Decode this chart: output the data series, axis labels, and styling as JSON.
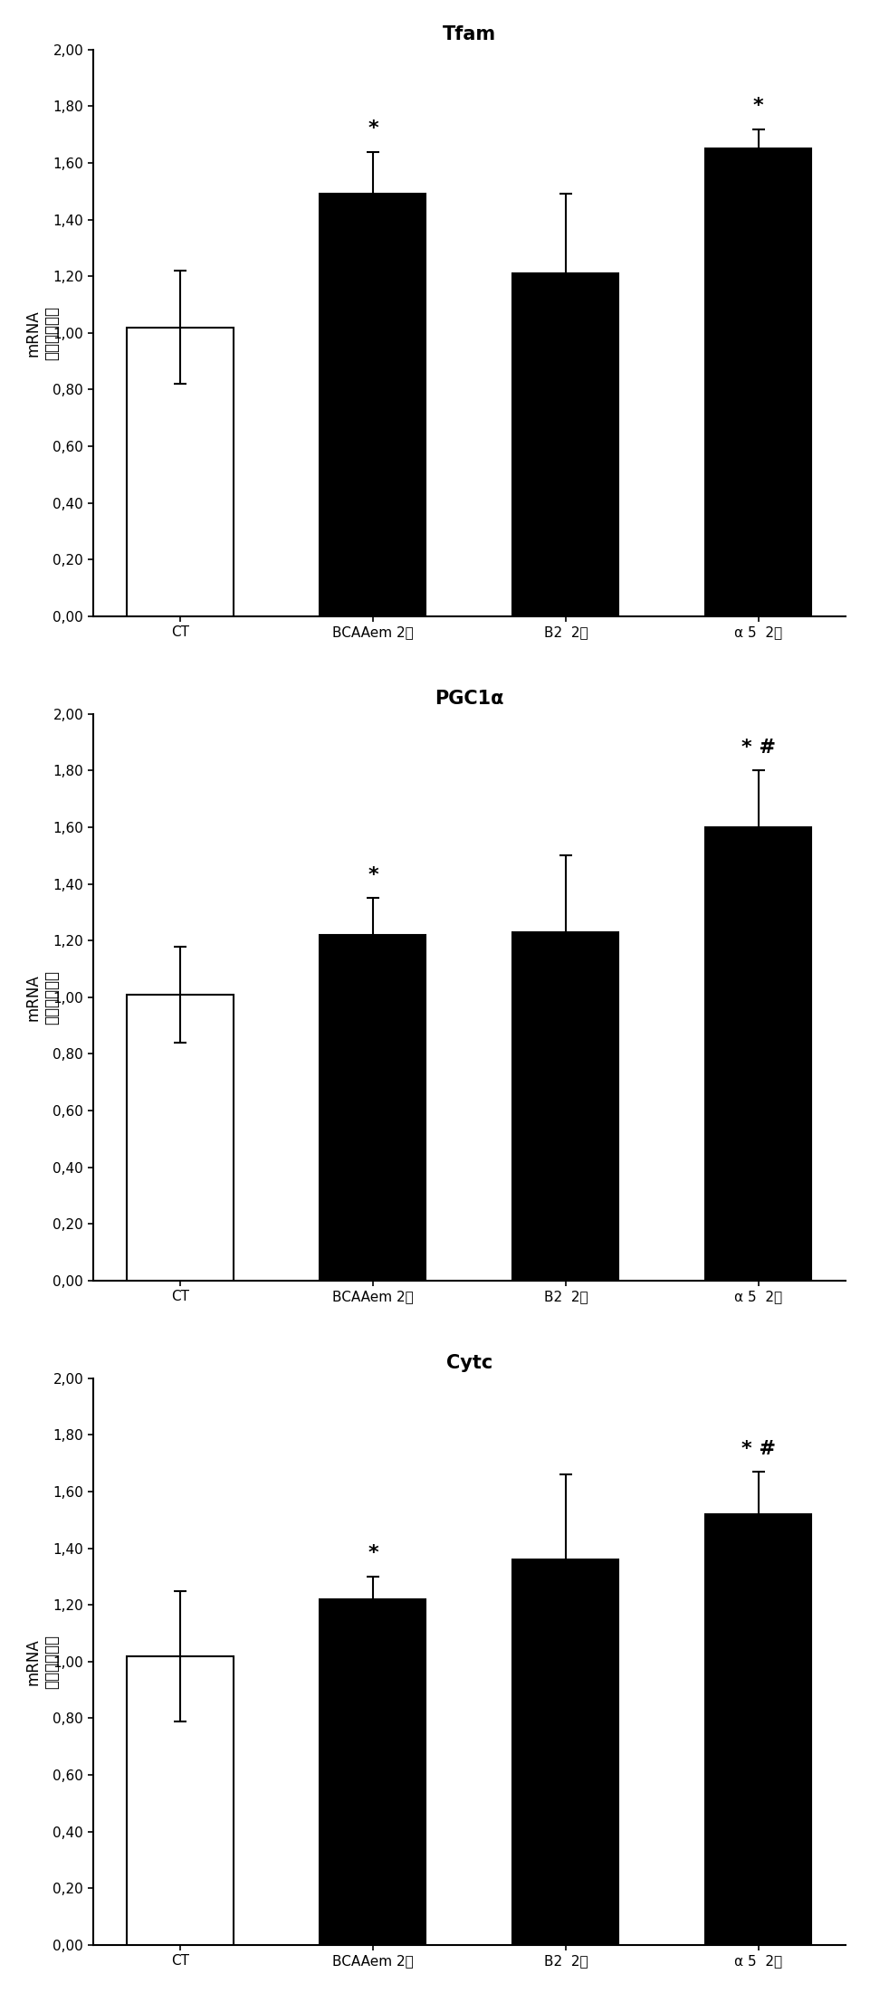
{
  "charts": [
    {
      "title": "Tfam",
      "categories": [
        "CT",
        "BCAAem 2天",
        "B2  2天",
        "α 5  2天"
      ],
      "values": [
        1.02,
        1.49,
        1.21,
        1.65
      ],
      "errors": [
        0.2,
        0.15,
        0.28,
        0.07
      ],
      "bar_colors": [
        "#ffffff",
        "#000000",
        "#000000",
        "#000000"
      ],
      "bar_edgecolors": [
        "#000000",
        "#000000",
        "#000000",
        "#000000"
      ],
      "annotations": [
        "",
        "*",
        "",
        "*"
      ]
    },
    {
      "title": "PGC1α",
      "categories": [
        "CT",
        "BCAAem 2天",
        "B2  2天",
        "α 5  2天"
      ],
      "values": [
        1.01,
        1.22,
        1.23,
        1.6
      ],
      "errors": [
        0.17,
        0.13,
        0.27,
        0.2
      ],
      "bar_colors": [
        "#ffffff",
        "#000000",
        "#000000",
        "#000000"
      ],
      "bar_edgecolors": [
        "#000000",
        "#000000",
        "#000000",
        "#000000"
      ],
      "annotations": [
        "",
        "*",
        "",
        "* #"
      ]
    },
    {
      "title": "Cytc",
      "categories": [
        "CT",
        "BCAAem 2天",
        "B2  2天",
        "α 5  2天"
      ],
      "values": [
        1.02,
        1.22,
        1.36,
        1.52
      ],
      "errors": [
        0.23,
        0.08,
        0.3,
        0.15
      ],
      "bar_colors": [
        "#ffffff",
        "#000000",
        "#000000",
        "#000000"
      ],
      "bar_edgecolors": [
        "#000000",
        "#000000",
        "#000000",
        "#000000"
      ],
      "annotations": [
        "",
        "*",
        "",
        "* #"
      ]
    }
  ],
  "ylim": [
    0,
    2.0
  ],
  "yticks": [
    0.0,
    0.2,
    0.4,
    0.6,
    0.8,
    1.0,
    1.2,
    1.4,
    1.6,
    1.8,
    2.0
  ],
  "ytick_labels": [
    "0,00",
    "0,20",
    "0,40",
    "0,60",
    "0,80",
    "1,00",
    "1,20",
    "1,40",
    "1,60",
    "1,80",
    "2,00"
  ],
  "ylabel_line1": "mRNA",
  "ylabel_line2": "（相对表达）",
  "background_color": "#ffffff",
  "bar_width": 0.55,
  "title_fontsize": 15,
  "tick_fontsize": 11,
  "label_fontsize": 12,
  "annot_fontsize": 16,
  "xlabel_fontsize": 11
}
